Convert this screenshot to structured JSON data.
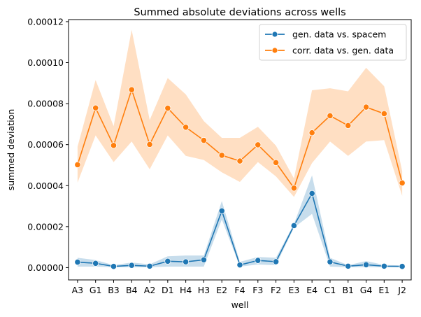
{
  "chart_data": {
    "type": "line",
    "title": "Summed absolute deviations across wells",
    "xlabel": "well",
    "ylabel": "summed deviation",
    "categories": [
      "A3",
      "G1",
      "B3",
      "B4",
      "A2",
      "D1",
      "H4",
      "H3",
      "E2",
      "F4",
      "F3",
      "F2",
      "E3",
      "E4",
      "C1",
      "B1",
      "G4",
      "E1",
      "J2"
    ],
    "ylim": [
      -6e-06,
      0.000121
    ],
    "yticks": [
      0.0,
      2e-05,
      4e-05,
      6e-05,
      8e-05,
      0.0001,
      0.00012
    ],
    "ytick_labels": [
      "0.00000",
      "0.00002",
      "0.00004",
      "0.00006",
      "0.00008",
      "0.00010",
      "0.00012"
    ],
    "grid": false,
    "legend_position": "top-right",
    "series": [
      {
        "name": "gen. data vs. spacem",
        "color": "#1f77b4",
        "values": [
          2.7e-06,
          2.1e-06,
          6e-07,
          1.1e-06,
          7e-07,
          3.1e-06,
          2.8e-06,
          3.8e-06,
          2.77e-05,
          1.3e-06,
          3.5e-06,
          2.9e-06,
          2.05e-05,
          3.62e-05,
          2.8e-06,
          7e-07,
          1.4e-06,
          7e-07,
          6e-07
        ],
        "ci_lower": [
          5e-07,
          5e-07,
          2e-07,
          2e-07,
          2e-07,
          5e-07,
          5e-07,
          5e-07,
          2.35e-05,
          5e-07,
          1.5e-06,
          1.2e-06,
          1.95e-05,
          2.62e-05,
          5e-07,
          2e-07,
          2e-07,
          2e-07,
          2e-07
        ],
        "ci_upper": [
          4.8e-06,
          3.7e-06,
          1.2e-06,
          2.5e-06,
          1.6e-06,
          5.5e-06,
          5.9e-06,
          5.9e-06,
          3.25e-05,
          2.8e-06,
          5.2e-06,
          4.8e-06,
          2.13e-05,
          4.5e-05,
          4.8e-06,
          1.2e-06,
          3.2e-06,
          1.3e-06,
          1.1e-06
        ]
      },
      {
        "name": "corr. data vs. gen. data",
        "color": "#ff7f0e",
        "values": [
          5.02e-05,
          7.79e-05,
          5.96e-05,
          8.68e-05,
          6.01e-05,
          7.78e-05,
          6.85e-05,
          6.21e-05,
          5.48e-05,
          5.2e-05,
          5.99e-05,
          5.12e-05,
          3.88e-05,
          6.58e-05,
          7.41e-05,
          6.93e-05,
          7.83e-05,
          7.51e-05,
          4.13e-05
        ],
        "ci_lower": [
          4.15e-05,
          6.45e-05,
          5.15e-05,
          6.15e-05,
          4.8e-05,
          6.45e-05,
          5.45e-05,
          5.25e-05,
          4.65e-05,
          4.18e-05,
          5.15e-05,
          4.45e-05,
          3.45e-05,
          5.1e-05,
          6.15e-05,
          5.45e-05,
          6.15e-05,
          6.22e-05,
          3.5e-05
        ],
        "ci_upper": [
          5.9e-05,
          9.15e-05,
          6.9e-05,
          0.000116,
          7.2e-05,
          9.25e-05,
          8.45e-05,
          7.15e-05,
          6.33e-05,
          6.33e-05,
          6.87e-05,
          5.95e-05,
          4.35e-05,
          8.65e-05,
          8.75e-05,
          8.6e-05,
          9.75e-05,
          8.85e-05,
          4.7e-05
        ]
      }
    ]
  }
}
